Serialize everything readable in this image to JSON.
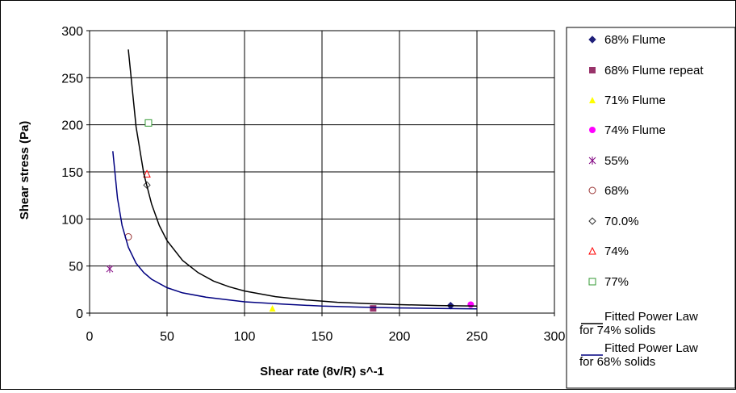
{
  "chart_data": {
    "type": "scatter",
    "xlabel": "Shear rate (8v/R) s^-1",
    "ylabel": "Shear stress (Pa)",
    "xlim": [
      0,
      300
    ],
    "ylim": [
      0,
      300
    ],
    "xticks": [
      0,
      50,
      100,
      150,
      200,
      250,
      300
    ],
    "yticks": [
      0,
      50,
      100,
      150,
      200,
      250,
      300
    ],
    "grid": true,
    "legend_position": "right",
    "series": [
      {
        "name": "68% Flume",
        "marker": "diamond-filled",
        "color": "#1f1f7a",
        "points": [
          [
            233,
            8
          ]
        ]
      },
      {
        "name": "68% Flume repeat",
        "marker": "square-filled",
        "color": "#99336a",
        "points": [
          [
            183,
            5
          ]
        ]
      },
      {
        "name": "71% Flume",
        "marker": "triangle-filled",
        "color": "#ffff00",
        "points": [
          [
            118,
            5
          ]
        ]
      },
      {
        "name": "74% Flume",
        "marker": "circle-filled",
        "color": "#ff00ff",
        "points": [
          [
            246,
            9
          ]
        ]
      },
      {
        "name": "55%",
        "marker": "asterisk",
        "color": "#800080",
        "points": [
          [
            13,
            47
          ]
        ]
      },
      {
        "name": "68%",
        "marker": "circle-open",
        "color": "#993333",
        "points": [
          [
            25,
            81
          ]
        ]
      },
      {
        "name": "70.0%",
        "marker": "diamond-open",
        "color": "#333333",
        "points": [
          [
            37,
            136
          ]
        ]
      },
      {
        "name": "74%",
        "marker": "triangle-open",
        "color": "#ff0000",
        "points": [
          [
            37,
            148
          ]
        ]
      },
      {
        "name": "77%",
        "marker": "square-open",
        "color": "#339933",
        "points": [
          [
            38,
            202
          ]
        ]
      },
      {
        "name": "Fitted Power Law for 74% solids",
        "line": true,
        "color": "#000000",
        "points": [
          [
            25,
            280
          ],
          [
            30,
            198
          ],
          [
            35,
            148
          ],
          [
            40,
            116
          ],
          [
            45,
            93
          ],
          [
            50,
            77
          ],
          [
            60,
            56
          ],
          [
            70,
            43
          ],
          [
            80,
            34
          ],
          [
            90,
            28
          ],
          [
            100,
            23.5
          ],
          [
            120,
            17.5
          ],
          [
            140,
            14
          ],
          [
            160,
            11.5
          ],
          [
            180,
            10
          ],
          [
            200,
            9
          ],
          [
            225,
            8.1
          ],
          [
            250,
            7.5
          ]
        ]
      },
      {
        "name": "Fitted Power Law for 68% solids",
        "line": true,
        "color": "#000080",
        "points": [
          [
            15,
            172
          ],
          [
            18,
            122
          ],
          [
            21,
            93
          ],
          [
            25,
            70
          ],
          [
            30,
            53
          ],
          [
            35,
            43
          ],
          [
            40,
            36
          ],
          [
            50,
            27
          ],
          [
            60,
            21.5
          ],
          [
            75,
            17
          ],
          [
            100,
            12
          ],
          [
            125,
            9.5
          ],
          [
            150,
            7.5
          ],
          [
            175,
            6.3
          ],
          [
            200,
            5.5
          ],
          [
            225,
            4.9
          ],
          [
            250,
            4.5
          ]
        ]
      }
    ]
  }
}
